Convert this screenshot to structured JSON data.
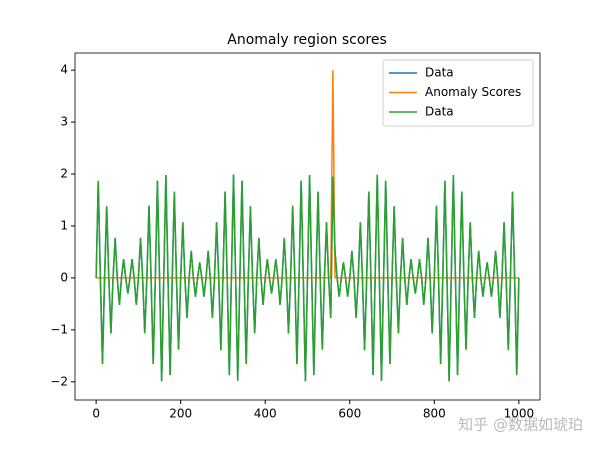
{
  "chart_data": {
    "type": "line",
    "title": "Anomaly region scores",
    "x": [
      0,
      5,
      10,
      15,
      20,
      25,
      30,
      35,
      40,
      45,
      50,
      55,
      60,
      65,
      70,
      75,
      80,
      85,
      90,
      95,
      100,
      105,
      110,
      115,
      120,
      125,
      130,
      135,
      140,
      145,
      150,
      155,
      160,
      165,
      170,
      175,
      180,
      185,
      190,
      195,
      200,
      205,
      210,
      215,
      220,
      225,
      230,
      235,
      240,
      245,
      250,
      255,
      260,
      265,
      270,
      275,
      280,
      285,
      290,
      295,
      300,
      305,
      310,
      315,
      320,
      325,
      330,
      335,
      340,
      345,
      350,
      355,
      360,
      365,
      370,
      375,
      380,
      385,
      390,
      395,
      400,
      405,
      410,
      415,
      420,
      425,
      430,
      435,
      440,
      445,
      450,
      455,
      460,
      465,
      470,
      475,
      480,
      485,
      490,
      495,
      500,
      505,
      510,
      515,
      520,
      525,
      530,
      535,
      540,
      545,
      550,
      555,
      560,
      565,
      570,
      575,
      580,
      585,
      590,
      595,
      600,
      605,
      610,
      615,
      620,
      625,
      630,
      635,
      640,
      645,
      650,
      655,
      660,
      665,
      670,
      675,
      680,
      685,
      690,
      695,
      700,
      705,
      710,
      715,
      720,
      725,
      730,
      735,
      740,
      745,
      750,
      755,
      760,
      765,
      770,
      775,
      780,
      785,
      790,
      795,
      800,
      805,
      810,
      815,
      820,
      825,
      830,
      835,
      840,
      845,
      850,
      855,
      860,
      865,
      870,
      875,
      880,
      885,
      890,
      895,
      900,
      905,
      910,
      915,
      920,
      925,
      930,
      935,
      940,
      945,
      950,
      955,
      960,
      965,
      970,
      975,
      980,
      985,
      990,
      995,
      1000
    ],
    "series": [
      {
        "name": "Data",
        "color": "#1f77b4",
        "values": [
          0,
          1.87,
          0,
          -1.66,
          0,
          1.38,
          0,
          -1.07,
          0,
          0.77,
          0,
          -0.52,
          0,
          0.36,
          0,
          -0.3,
          0,
          0.36,
          0,
          -0.52,
          0,
          0.77,
          0,
          -1.07,
          0,
          1.39,
          0,
          -1.66,
          0,
          1.87,
          0,
          -1.99,
          0,
          1.98,
          0,
          -1.87,
          0,
          1.66,
          0,
          -1.38,
          0,
          1.07,
          0,
          -0.77,
          0,
          0.52,
          0,
          -0.36,
          0,
          0.3,
          0,
          -0.36,
          0,
          0.52,
          0,
          -0.77,
          0,
          1.07,
          0,
          -1.39,
          0,
          1.66,
          0,
          -1.87,
          0,
          1.99,
          0,
          -1.98,
          0,
          1.87,
          0,
          -1.66,
          0,
          1.38,
          0,
          -1.07,
          0,
          0.77,
          0,
          -0.52,
          0,
          0.36,
          0,
          -0.3,
          0,
          0.36,
          0,
          -0.52,
          0,
          0.77,
          0,
          -1.07,
          0,
          1.39,
          0,
          -1.66,
          0,
          1.87,
          0,
          -1.99,
          0,
          1.98,
          0,
          -1.87,
          0,
          1.66,
          0,
          -1.38,
          0,
          1.07,
          0,
          -0.77,
          1.95,
          0.52,
          0,
          -0.36,
          0,
          0.3,
          0,
          -0.36,
          0,
          0.52,
          0,
          -0.77,
          0,
          1.07,
          0,
          -1.39,
          0,
          1.66,
          0,
          -1.87,
          0,
          1.99,
          0,
          -1.98,
          0,
          1.87,
          0,
          -1.66,
          0,
          1.38,
          0,
          -1.07,
          0,
          0.77,
          0,
          -0.52,
          0,
          0.36,
          0,
          -0.3,
          0,
          0.36,
          0,
          -0.52,
          0,
          0.77,
          0,
          -1.07,
          0,
          1.39,
          0,
          -1.66,
          0,
          1.87,
          0,
          -1.99,
          0,
          1.98,
          0,
          -1.87,
          0,
          1.66,
          0,
          -1.38,
          0,
          1.07,
          0,
          -0.77,
          0,
          0.52,
          0,
          -0.36,
          0,
          0.3,
          0,
          -0.36,
          0,
          0.52,
          0,
          -0.77,
          0,
          1.07,
          0,
          -1.39,
          0,
          1.66,
          0,
          -1.87,
          0
        ]
      },
      {
        "name": "Anomaly Scores",
        "color": "#ff7f0e",
        "values": [
          0,
          0,
          0,
          0,
          0,
          0,
          0,
          0,
          0,
          0,
          0,
          0,
          0,
          0,
          0,
          0,
          0,
          0,
          0,
          0,
          0,
          0,
          0,
          0,
          0,
          0,
          0,
          0,
          0,
          0,
          0,
          0,
          0,
          0,
          0,
          0,
          0,
          0,
          0,
          0,
          0,
          0,
          0,
          0,
          0,
          0,
          0,
          0,
          0,
          0,
          0,
          0,
          0,
          0,
          0,
          0,
          0,
          0,
          0,
          0,
          0,
          0,
          0,
          0,
          0,
          0,
          0,
          0,
          0,
          0,
          0,
          0,
          0,
          0,
          0,
          0,
          0,
          0,
          0,
          0,
          0,
          0,
          0,
          0,
          0,
          0,
          0,
          0,
          0,
          0,
          0,
          0,
          0,
          0,
          0,
          0,
          0,
          0,
          0,
          0,
          0,
          0,
          0,
          0,
          0,
          0,
          0,
          0,
          0,
          0,
          0,
          0,
          4,
          0,
          0,
          0,
          0,
          0,
          0,
          0,
          0,
          0,
          0,
          0,
          0,
          0,
          0,
          0,
          0,
          0,
          0,
          0,
          0,
          0,
          0,
          0,
          0,
          0,
          0,
          0,
          0,
          0,
          0,
          0,
          0,
          0,
          0,
          0,
          0,
          0,
          0,
          0,
          0,
          0,
          0,
          0,
          0,
          0,
          0,
          0,
          0,
          0,
          0,
          0,
          0,
          0,
          0,
          0,
          0,
          0,
          0,
          0,
          0,
          0,
          0,
          0,
          0,
          0,
          0,
          0,
          0,
          0,
          0,
          0,
          0,
          0,
          0,
          0,
          0,
          0,
          0,
          0,
          0,
          0,
          0,
          0,
          0,
          0,
          0,
          0,
          0
        ]
      },
      {
        "name": "Data",
        "color": "#2ca02c",
        "values": [
          0,
          1.87,
          0,
          -1.66,
          0,
          1.38,
          0,
          -1.07,
          0,
          0.77,
          0,
          -0.52,
          0,
          0.36,
          0,
          -0.3,
          0,
          0.36,
          0,
          -0.52,
          0,
          0.77,
          0,
          -1.07,
          0,
          1.39,
          0,
          -1.66,
          0,
          1.87,
          0,
          -1.99,
          0,
          1.98,
          0,
          -1.87,
          0,
          1.66,
          0,
          -1.38,
          0,
          1.07,
          0,
          -0.77,
          0,
          0.52,
          0,
          -0.36,
          0,
          0.3,
          0,
          -0.36,
          0,
          0.52,
          0,
          -0.77,
          0,
          1.07,
          0,
          -1.39,
          0,
          1.66,
          0,
          -1.87,
          0,
          1.99,
          0,
          -1.98,
          0,
          1.87,
          0,
          -1.66,
          0,
          1.38,
          0,
          -1.07,
          0,
          0.77,
          0,
          -0.52,
          0,
          0.36,
          0,
          -0.3,
          0,
          0.36,
          0,
          -0.52,
          0,
          0.77,
          0,
          -1.07,
          0,
          1.39,
          0,
          -1.66,
          0,
          1.87,
          0,
          -1.99,
          0,
          1.98,
          0,
          -1.87,
          0,
          1.66,
          0,
          -1.38,
          0,
          1.07,
          0,
          -0.77,
          1.95,
          0.52,
          0,
          -0.36,
          0,
          0.3,
          0,
          -0.36,
          0,
          0.52,
          0,
          -0.77,
          0,
          1.07,
          0,
          -1.39,
          0,
          1.66,
          0,
          -1.87,
          0,
          1.99,
          0,
          -1.98,
          0,
          1.87,
          0,
          -1.66,
          0,
          1.38,
          0,
          -1.07,
          0,
          0.77,
          0,
          -0.52,
          0,
          0.36,
          0,
          -0.3,
          0,
          0.36,
          0,
          -0.52,
          0,
          0.77,
          0,
          -1.07,
          0,
          1.39,
          0,
          -1.66,
          0,
          1.87,
          0,
          -1.99,
          0,
          1.98,
          0,
          -1.87,
          0,
          1.66,
          0,
          -1.38,
          0,
          1.07,
          0,
          -0.77,
          0,
          0.52,
          0,
          -0.36,
          0,
          0.3,
          0,
          -0.36,
          0,
          0.52,
          0,
          -0.77,
          0,
          1.07,
          0,
          -1.39,
          0,
          1.66,
          0,
          -1.87,
          0
        ]
      }
    ],
    "xlim": [
      -50,
      1050
    ],
    "ylim": [
      -2.35,
      4.33
    ],
    "xticks": [
      0,
      200,
      400,
      600,
      800,
      1000
    ],
    "yticks": [
      {
        "value": -2,
        "label": "−2"
      },
      {
        "value": -1,
        "label": "−1"
      },
      0,
      1,
      2,
      3,
      4
    ],
    "legend": "upper right",
    "grid": false,
    "watermark": "知乎 @数据如琥珀"
  }
}
